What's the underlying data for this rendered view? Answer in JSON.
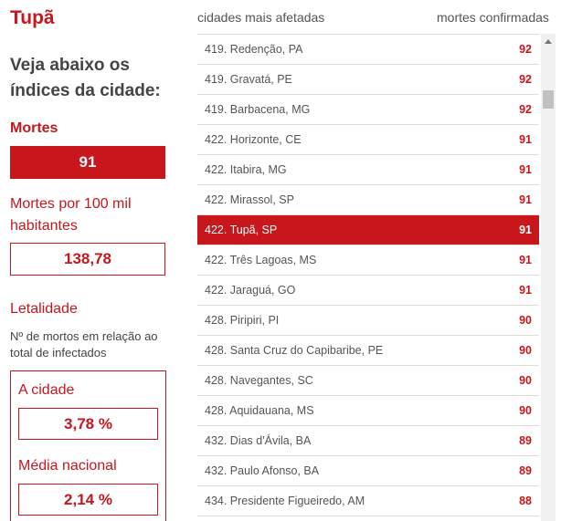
{
  "city": {
    "name": "Tupã"
  },
  "intro": "Veja abaixo os índices da cidade:",
  "deaths": {
    "label": "Mortes",
    "value": "91"
  },
  "per100k": {
    "label": "Mortes por 100 mil habitantes",
    "value": "138,78"
  },
  "lethality": {
    "label": "Letalidade",
    "description": "Nº de mortos em relação ao total de infectados",
    "city_label": "A cidade",
    "city_value": "3,78 %",
    "national_label": "Média nacional",
    "national_value": "2,14 %"
  },
  "table": {
    "header_city": "cidades mais afetadas",
    "header_deaths": "mortes confirmadas",
    "rows": [
      {
        "city": "419. Redenção, PA",
        "deaths": "92",
        "highlight": false
      },
      {
        "city": "419. Gravatá, PE",
        "deaths": "92",
        "highlight": false
      },
      {
        "city": "419. Barbacena, MG",
        "deaths": "92",
        "highlight": false
      },
      {
        "city": "422. Horizonte, CE",
        "deaths": "91",
        "highlight": false
      },
      {
        "city": "422. Itabira, MG",
        "deaths": "91",
        "highlight": false
      },
      {
        "city": "422. Mirassol, SP",
        "deaths": "91",
        "highlight": false
      },
      {
        "city": "422. Tupã, SP",
        "deaths": "91",
        "highlight": true
      },
      {
        "city": "422. Três Lagoas, MS",
        "deaths": "91",
        "highlight": false
      },
      {
        "city": "422. Jaraguá, GO",
        "deaths": "91",
        "highlight": false
      },
      {
        "city": "428. Piripiri, PI",
        "deaths": "90",
        "highlight": false
      },
      {
        "city": "428. Santa Cruz do Capibaribe, PE",
        "deaths": "90",
        "highlight": false
      },
      {
        "city": "428. Navegantes, SC",
        "deaths": "90",
        "highlight": false
      },
      {
        "city": "428. Aquidauana, MS",
        "deaths": "90",
        "highlight": false
      },
      {
        "city": "432. Dias d'Ávila, BA",
        "deaths": "89",
        "highlight": false
      },
      {
        "city": "432. Paulo Afonso, BA",
        "deaths": "89",
        "highlight": false
      },
      {
        "city": "434. Presidente Figueiredo, AM",
        "deaths": "88",
        "highlight": false
      }
    ]
  },
  "colors": {
    "accent": "#c8161d"
  }
}
